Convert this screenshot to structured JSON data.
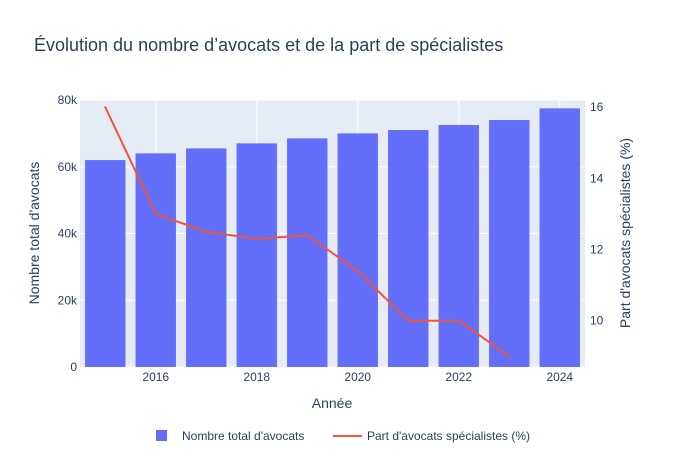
{
  "chart_data": {
    "type": "bar",
    "title": "Évolution du nombre d’avocats et de la part de spécialistes",
    "xlabel": "Année",
    "ylabel": "Nombre total d'avocats",
    "y2label": "Part d'avocats spécialistes (%)",
    "x": [
      2015,
      2016,
      2017,
      2018,
      2019,
      2020,
      2021,
      2022,
      2023,
      2024
    ],
    "x_ticks": [
      2016,
      2018,
      2020,
      2022,
      2024
    ],
    "ylim": [
      0,
      80000
    ],
    "y_ticks": [
      0,
      20000,
      40000,
      60000,
      80000
    ],
    "y_tick_labels": [
      "0",
      "20k",
      "40k",
      "60k",
      "80k"
    ],
    "y2lim": [
      8.7,
      16.2
    ],
    "y2_ticks": [
      10,
      12,
      14,
      16
    ],
    "series": [
      {
        "name": "Nombre total d'avocats",
        "type": "bar",
        "axis": "y",
        "color": "#636efa",
        "values": [
          62000,
          64000,
          65500,
          67000,
          68500,
          70000,
          71000,
          72500,
          74000,
          77500
        ]
      },
      {
        "name": "Part d'avocats spécialistes (%)",
        "type": "line",
        "axis": "y2",
        "color": "#ef553b",
        "values": [
          16.0,
          13.0,
          12.5,
          12.3,
          12.4,
          11.4,
          10.0,
          10.0,
          9.0,
          null
        ]
      }
    ],
    "grid": true,
    "legend_position": "bottom"
  }
}
